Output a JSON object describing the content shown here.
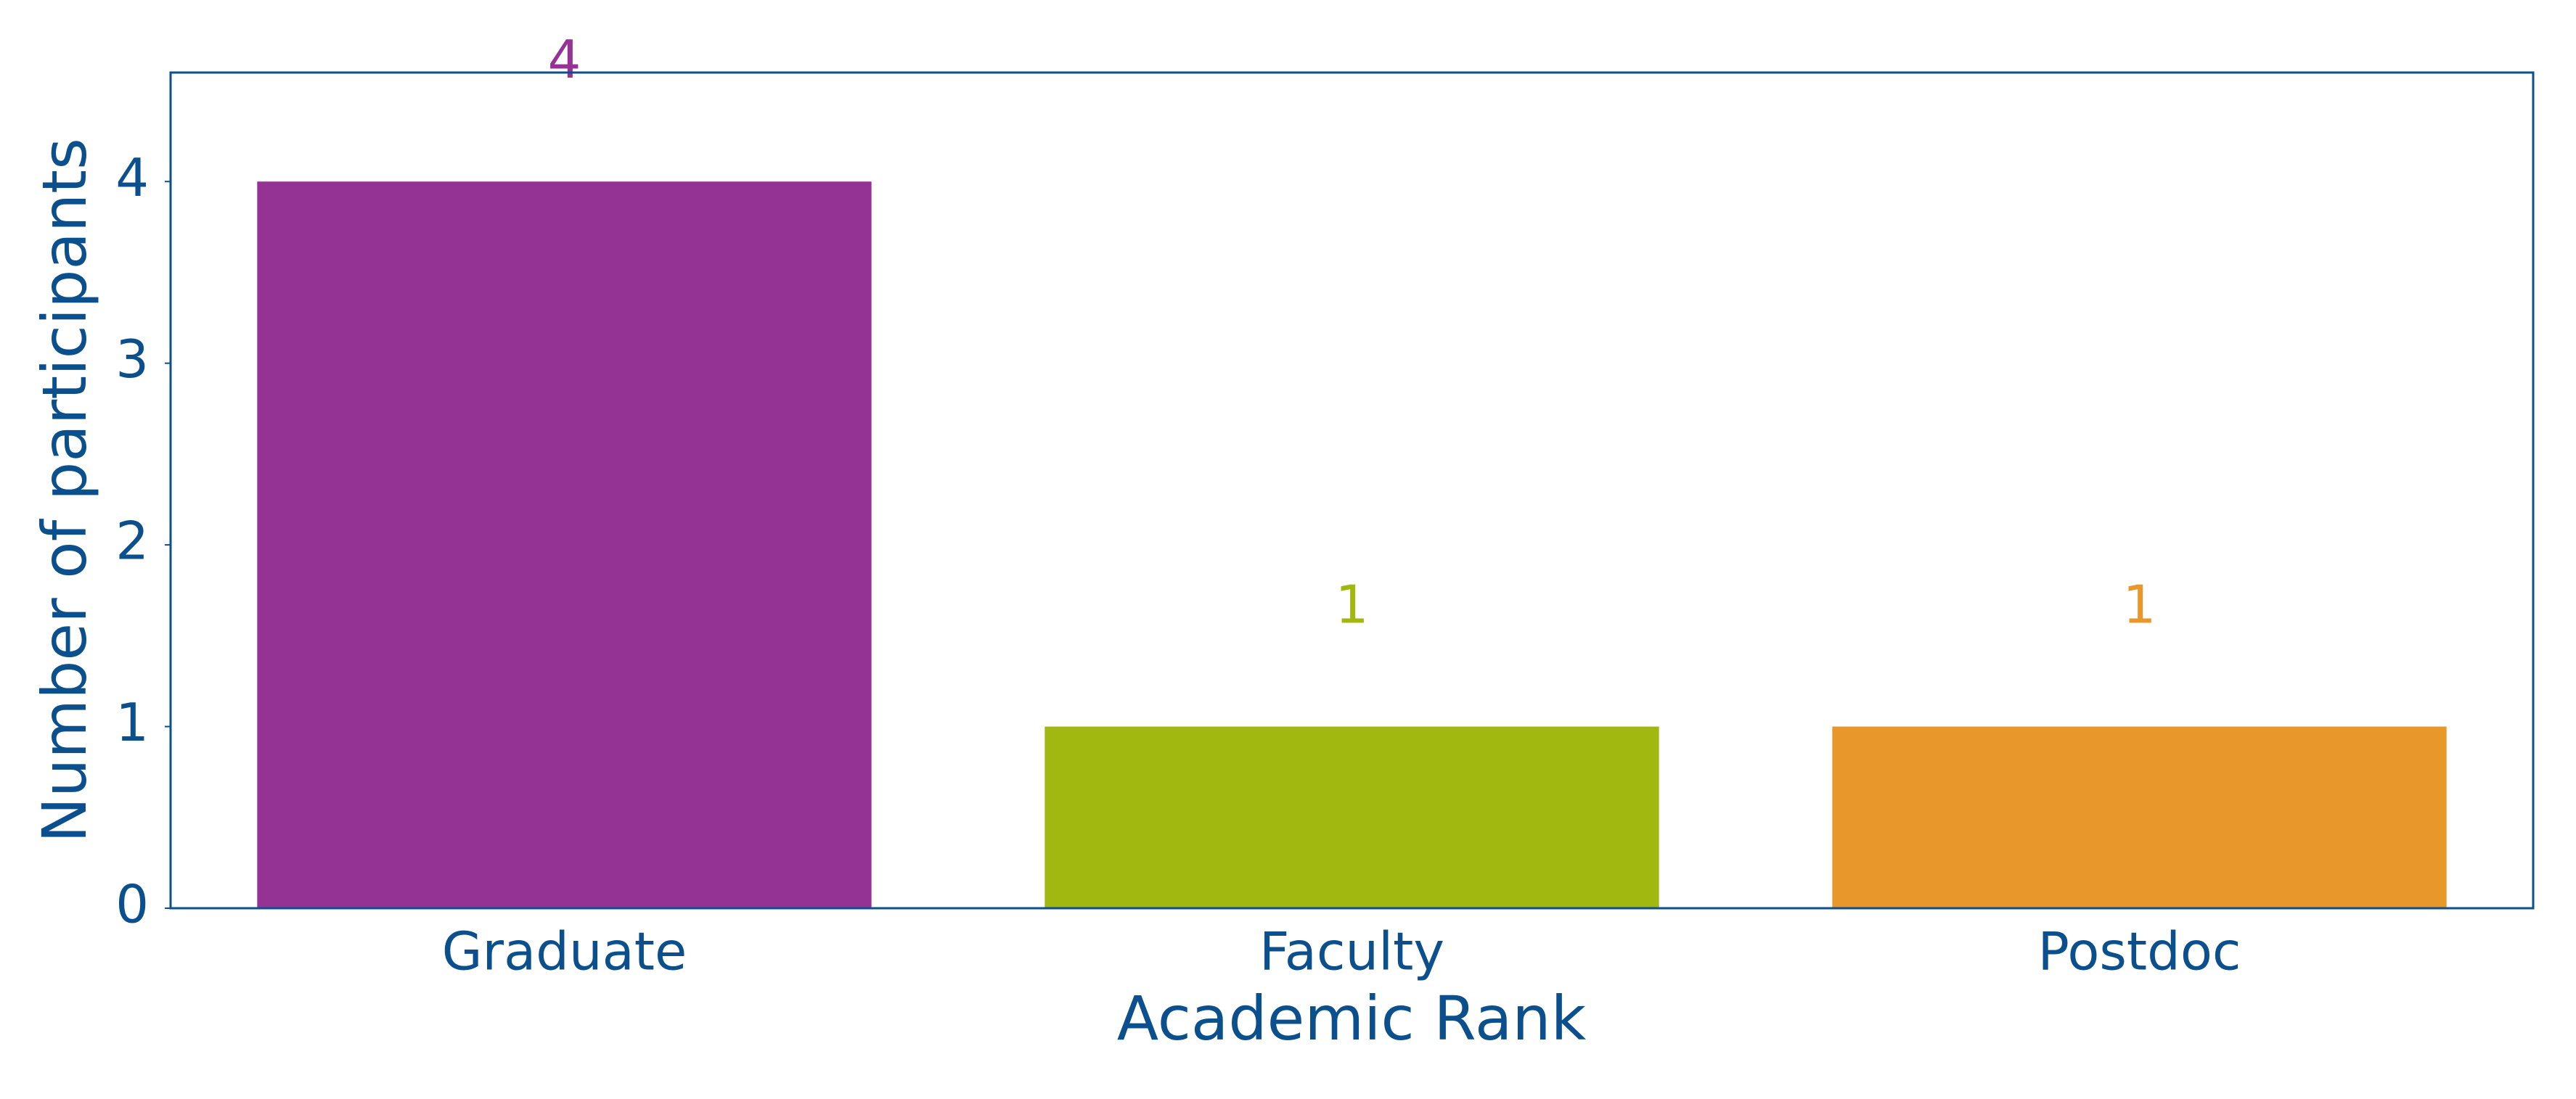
{
  "chart_data": {
    "type": "bar",
    "x_label": "Academic Rank",
    "y_label": "Number of participants",
    "categories": [
      "Graduate",
      "Faculty",
      "Postdoc"
    ],
    "values": [
      4,
      1,
      1
    ],
    "colors": [
      "#953395",
      "#a0b80f",
      "#e8982a"
    ],
    "ylim": [
      0,
      4.6
    ],
    "yticks": [
      0,
      1,
      2,
      3,
      4
    ],
    "grid": false
  }
}
